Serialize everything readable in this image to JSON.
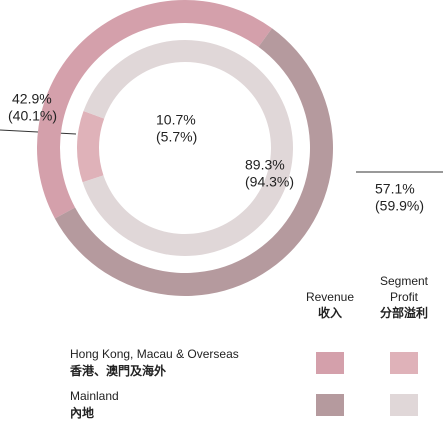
{
  "chart_data": {
    "type": "donut",
    "categories": [
      [
        "Hong Kong, Macau & Overseas",
        "香港、澳門及海外"
      ],
      [
        "Mainland",
        "內地"
      ]
    ],
    "series": [
      {
        "name": [
          "Revenue",
          "收入"
        ],
        "colors": [
          "#d4a0ab",
          "#b59a9e"
        ],
        "values": [
          42.9,
          57.1
        ],
        "value_labels": [
          "42.9%",
          "57.1%"
        ],
        "annotations": [
          "(40.1%)",
          "(59.9%)"
        ]
      },
      {
        "name": [
          "Segment",
          "Profit",
          "分部溢利"
        ],
        "colors": [
          "#dfb2b9",
          "#e0d7d8"
        ],
        "values": [
          10.7,
          89.3
        ],
        "value_labels": [
          "10.7%",
          "89.3%"
        ],
        "annotations": [
          "(5.7%)",
          "(94.3%)"
        ]
      }
    ]
  }
}
